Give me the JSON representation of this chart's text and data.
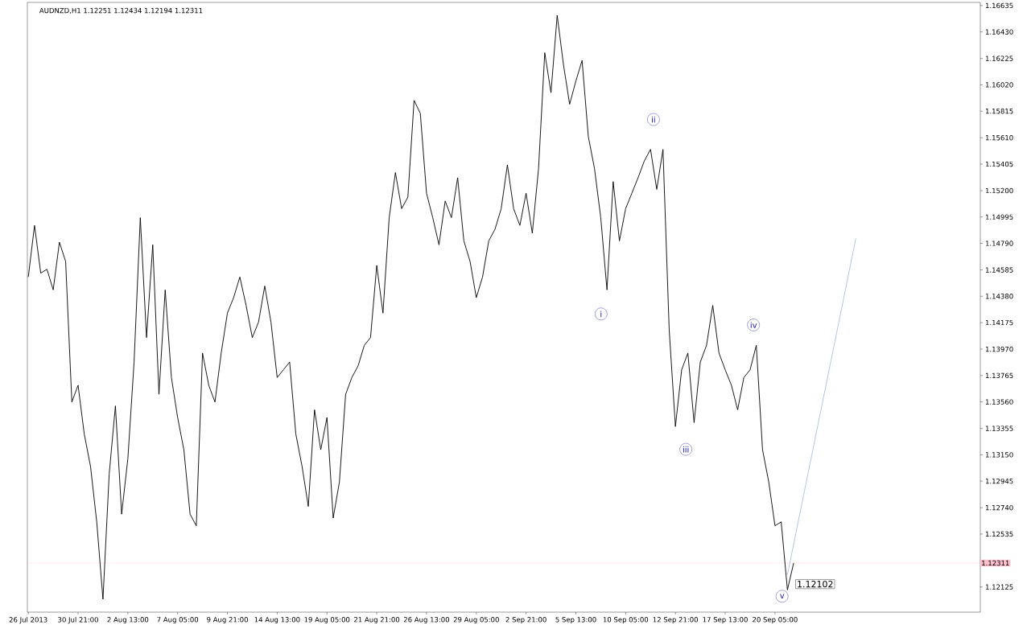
{
  "chart_data": {
    "type": "line",
    "title": "AUDNZD,H1  1.12251 1.12434 1.12194 1.12311",
    "ylim": [
      1.1193,
      1.1666
    ],
    "categories": [
      "26 Jul 2013",
      null,
      null,
      null,
      null,
      null,
      null,
      null,
      "30 Jul 21:00",
      null,
      null,
      null,
      null,
      null,
      null,
      null,
      "2 Aug 13:00",
      null,
      null,
      null,
      null,
      null,
      null,
      null,
      "7 Aug 05:00",
      null,
      null,
      null,
      null,
      null,
      null,
      null,
      "9 Aug 21:00",
      null,
      null,
      null,
      null,
      null,
      null,
      null,
      "14 Aug 13:00",
      null,
      null,
      null,
      null,
      null,
      null,
      null,
      "19 Aug 05:00",
      null,
      null,
      null,
      null,
      null,
      null,
      null,
      "21 Aug 21:00",
      null,
      null,
      null,
      null,
      null,
      null,
      null,
      "26 Aug 13:00",
      null,
      null,
      null,
      null,
      null,
      null,
      null,
      "29 Aug 05:00",
      null,
      null,
      null,
      null,
      null,
      null,
      null,
      "2 Sep 21:00",
      null,
      null,
      null,
      null,
      null,
      null,
      null,
      "5 Sep 13:00",
      null,
      null,
      null,
      null,
      null,
      null,
      null,
      "10 Sep 05:00",
      null,
      null,
      null,
      null,
      null,
      null,
      null,
      "12 Sep 21:00",
      null,
      null,
      null,
      null,
      null,
      null,
      null,
      "17 Sep 13:00",
      null,
      null,
      null,
      null,
      null,
      null,
      null,
      "20 Sep 05:00",
      null,
      null,
      null,
      null,
      null,
      null,
      null,
      null,
      null,
      null,
      null,
      null,
      null,
      null,
      null,
      null,
      null,
      null,
      null,
      null,
      null,
      null,
      null,
      null,
      null,
      null,
      null,
      null,
      null,
      null,
      null,
      null,
      null
    ],
    "yticks": [
      1.12125,
      1.12535,
      {
        "value": 1.1274,
        "label": "1.12740"
      },
      1.12945,
      {
        "value": 1.1315,
        "label": "1.13150"
      },
      1.13355,
      {
        "value": 1.1356,
        "label": "1.13560"
      },
      1.13765,
      {
        "value": 1.1397,
        "label": "1.13970"
      },
      1.14175,
      {
        "value": 1.1438,
        "label": "1.14380"
      },
      1.14585,
      {
        "value": 1.1479,
        "label": "1.14790"
      },
      1.14995,
      {
        "value": 1.152,
        "label": "1.15200"
      },
      1.15405,
      {
        "value": 1.1561,
        "label": "1.15610"
      },
      1.15815,
      {
        "value": 1.1602,
        "label": "1.16020"
      },
      1.16225,
      {
        "value": 1.1643,
        "label": "1.16430"
      },
      1.16635
    ],
    "series": [
      {
        "color": "#000000",
        "values": [
          1.1453,
          1.1493,
          1.1456,
          1.1459,
          1.1443,
          1.148,
          1.1465,
          1.1356,
          1.1369,
          1.1331,
          1.1306,
          1.1263,
          1.1203,
          1.13,
          1.1353,
          1.1269,
          1.1312,
          1.1387,
          1.1499,
          1.1406,
          1.1478,
          1.1362,
          1.1443,
          1.1375,
          1.1344,
          1.1319,
          1.1269,
          1.126,
          1.1394,
          1.1369,
          1.1356,
          1.1394,
          1.1425,
          1.1437,
          1.1453,
          1.1431,
          1.1406,
          1.1418,
          1.1446,
          1.1418,
          1.1375,
          1.1381,
          1.1387,
          1.1331,
          1.1306,
          1.1275,
          1.135,
          1.1319,
          1.1344,
          1.1266,
          1.1294,
          1.1362,
          1.1375,
          1.1384,
          1.14,
          1.1406,
          1.1462,
          1.1425,
          1.1499,
          1.1534,
          1.1506,
          1.1515,
          1.159,
          1.158,
          1.1518,
          1.1499,
          1.1478,
          1.1512,
          1.1499,
          1.153,
          1.1481,
          1.1465,
          1.1437,
          1.1453,
          1.1481,
          1.149,
          1.1506,
          1.154,
          1.1506,
          1.1493,
          1.1518,
          1.1487,
          1.1537,
          1.1627,
          1.1596,
          1.1656,
          1.1618,
          1.1587,
          1.1605,
          1.1621,
          1.1562,
          1.1537,
          1.1499,
          1.1443,
          1.1527,
          1.1481,
          1.1506,
          1.1518,
          1.153,
          1.1543,
          1.1552,
          1.1521,
          1.1552,
          1.1412,
          1.1337,
          1.1381,
          1.1394,
          1.134,
          1.1387,
          1.14,
          1.1431,
          1.1394,
          1.1381,
          1.1369,
          1.135,
          1.1375,
          1.1381,
          1.14,
          1.1319,
          1.1294,
          1.126,
          1.1263,
          1.12102,
          1.12311,
          null,
          null,
          null,
          null,
          null,
          null,
          null,
          null,
          null,
          null,
          null,
          null,
          null,
          null,
          null,
          null,
          null,
          null,
          null,
          null,
          null,
          null,
          null,
          null,
          null,
          null,
          null,
          null,
          null,
          null
        ]
      },
      {
        "color": "#a8c0e8",
        "values": [
          null,
          null,
          null,
          null,
          null,
          null,
          null,
          null,
          null,
          null,
          null,
          null,
          null,
          null,
          null,
          null,
          null,
          null,
          null,
          null,
          null,
          null,
          null,
          null,
          null,
          null,
          null,
          null,
          null,
          null,
          null,
          null,
          null,
          null,
          null,
          null,
          null,
          null,
          null,
          null,
          null,
          null,
          null,
          null,
          null,
          null,
          null,
          null,
          null,
          null,
          null,
          null,
          null,
          null,
          null,
          null,
          null,
          null,
          null,
          null,
          null,
          null,
          null,
          null,
          null,
          null,
          null,
          null,
          null,
          null,
          null,
          null,
          null,
          null,
          null,
          null,
          null,
          null,
          null,
          null,
          null,
          null,
          null,
          null,
          null,
          null,
          null,
          null,
          null,
          null,
          null,
          null,
          null,
          null,
          null,
          null,
          null,
          null,
          null,
          null,
          null,
          null,
          null,
          null,
          null,
          null,
          null,
          null,
          null,
          null,
          null,
          null,
          null,
          null,
          null,
          null,
          null,
          null,
          null,
          null,
          null,
          null,
          1.1222,
          null,
          null,
          null,
          null,
          null,
          null,
          null,
          null,
          null,
          null,
          1.1483,
          null,
          null,
          null,
          null,
          null,
          null,
          null,
          null,
          null,
          null,
          null,
          null,
          null,
          null,
          null,
          null,
          null,
          null,
          null,
          null
        ]
      }
    ],
    "ref_lines": [
      {
        "axis": "y",
        "value": 1.12311,
        "label": "1.12311",
        "color": "#ffc0cb"
      }
    ],
    "annotations": [
      "1.12102",
      "i",
      "ii",
      "iii",
      "iv",
      "v"
    ],
    "line_style": "solid",
    "marker": "none"
  }
}
